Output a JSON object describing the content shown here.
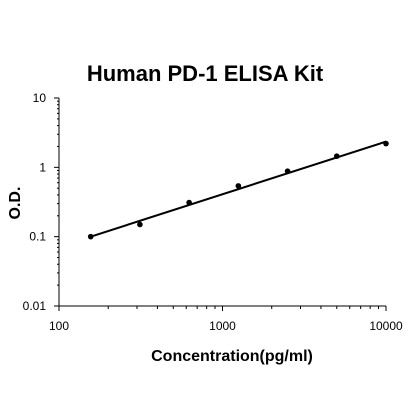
{
  "chart_data": {
    "type": "scatter",
    "title": "Human PD-1 ELISA Kit",
    "xlabel": "Concentration(pg/ml)",
    "ylabel": "O.D.",
    "xscale": "log",
    "yscale": "log",
    "xlim": [
      100,
      10000
    ],
    "ylim": [
      0.01,
      10
    ],
    "x_ticks": [
      100,
      1000,
      10000
    ],
    "x_tick_labels": [
      "100",
      "1000",
      "10000"
    ],
    "y_ticks": [
      0.01,
      0.1,
      1,
      10
    ],
    "y_tick_labels": [
      "0.01",
      "0.1",
      "1",
      "10"
    ],
    "grid": false,
    "legend": "none",
    "series": [
      {
        "x": [
          156.25,
          312.5,
          625,
          1250,
          2500,
          5000,
          10000
        ],
        "y": [
          0.1,
          0.15,
          0.31,
          0.54,
          0.88,
          1.45,
          2.2
        ]
      }
    ],
    "fit_line": {
      "x": [
        156.25,
        10000
      ],
      "y": [
        0.1,
        2.35
      ]
    },
    "colors": {
      "points": "#000000",
      "line": "#000000",
      "axis": "#000000"
    }
  }
}
